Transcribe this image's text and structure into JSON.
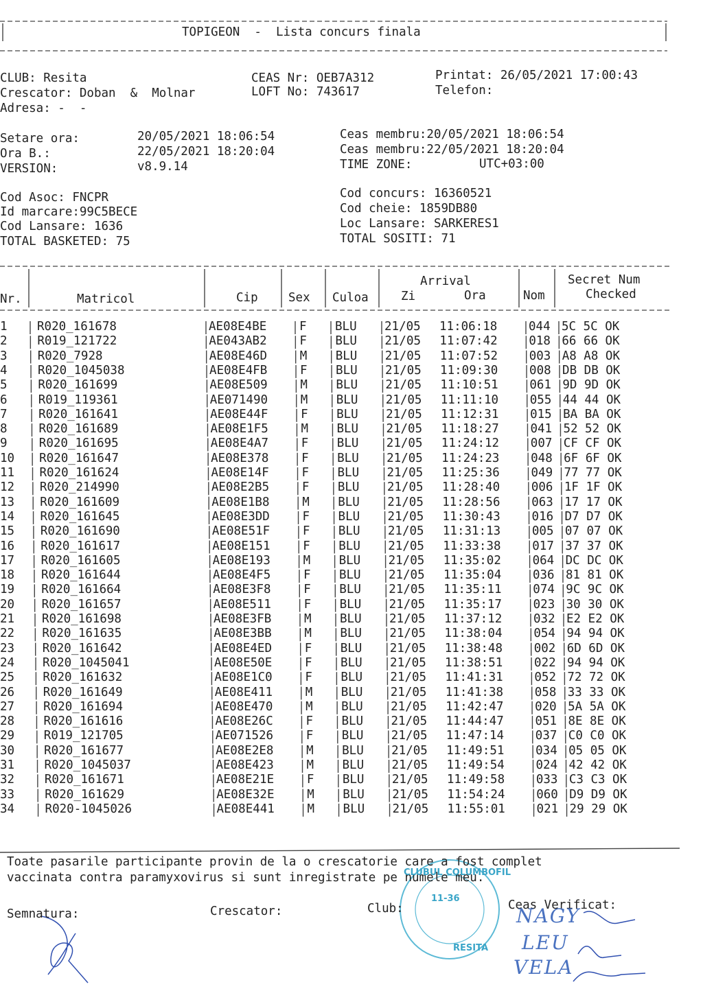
{
  "header": {
    "title": "TOPIGEON  -  Lista concurs finala"
  },
  "info": {
    "club": "CLUB: Resita",
    "ceas_nr": "CEAS Nr: OEB7A312",
    "printat": "Printat: 26/05/2021 17:00:43",
    "crescator": "Crescator: Doban  &  Molnar",
    "loft": "LOFT No: 743617",
    "telefon": "Telefon:",
    "adresa": "Adresa: -  -",
    "setare_label": "Setare ora:",
    "setare_value": "20/05/2021 18:06:54",
    "ceas_membru_1": "Ceas membru:20/05/2021 18:06:54",
    "ora_b_label": "Ora B.:",
    "ora_b_value": "22/05/2021 18:20:04",
    "ceas_membru_2": "Ceas membru:22/05/2021 18:20:04",
    "version_label": "VERSION:",
    "version_value": "v8.9.14",
    "time_zone_label": "TIME ZONE:",
    "time_zone_value": "UTC+03:00",
    "cod_asoc": "Cod Asoc: FNCPR",
    "id_marcare": "Id marcare:99C5BECE",
    "cod_lansare": "Cod Lansare: 1636",
    "total_basketed": "TOTAL BASKETED: 75",
    "cod_concurs": "Cod concurs: 16360521",
    "cod_cheie": "Cod cheie: 1859DB80",
    "loc_lansare": "Loc Lansare: SARKERES1",
    "total_sositi": "TOTAL SOSITI: 71"
  },
  "table": {
    "headers": {
      "nr": "Nr.",
      "matricol": "Matricol",
      "cip": "Cip",
      "sex": "Sex",
      "culoa": "Culoa",
      "arrival": "Arrival",
      "zi": "Zi",
      "ora": "Ora",
      "nom": "Nom",
      "secret": "Secret Num",
      "checked": "Checked"
    },
    "rows": [
      [
        "1",
        "R020_161678",
        "AE08E4BE",
        "F",
        "BLU",
        "21/05",
        "11:06:18",
        "044",
        "5C 5C OK"
      ],
      [
        "2",
        "R019_121722",
        "AE043AB2",
        "F",
        "BLU",
        "21/05",
        "11:07:42",
        "018",
        "66 66 OK"
      ],
      [
        "3",
        "R020_7928",
        "AE08E46D",
        "M",
        "BLU",
        "21/05",
        "11:07:52",
        "003",
        "A8 A8 OK"
      ],
      [
        "4",
        "R020_1045038",
        "AE08E4FB",
        "F",
        "BLU",
        "21/05",
        "11:09:30",
        "008",
        "DB DB OK"
      ],
      [
        "5",
        "R020_161699",
        "AE08E509",
        "M",
        "BLU",
        "21/05",
        "11:10:51",
        "061",
        "9D 9D OK"
      ],
      [
        "6",
        "R019_119361",
        "AE071490",
        "M",
        "BLU",
        "21/05",
        "11:11:10",
        "055",
        "44 44 OK"
      ],
      [
        "7",
        "R020_161641",
        "AE08E44F",
        "F",
        "BLU",
        "21/05",
        "11:12:31",
        "015",
        "BA BA OK"
      ],
      [
        "8",
        "R020_161689",
        "AE08E1F5",
        "M",
        "BLU",
        "21/05",
        "11:18:27",
        "041",
        "52 52 OK"
      ],
      [
        "9",
        "R020_161695",
        "AE08E4A7",
        "F",
        "BLU",
        "21/05",
        "11:24:12",
        "007",
        "CF CF OK"
      ],
      [
        "10",
        "R020_161647",
        "AE08E378",
        "F",
        "BLU",
        "21/05",
        "11:24:23",
        "048",
        "6F 6F OK"
      ],
      [
        "11",
        "R020_161624",
        "AE08E14F",
        "F",
        "BLU",
        "21/05",
        "11:25:36",
        "049",
        "77 77 OK"
      ],
      [
        "12",
        "R020_214990",
        "AE08E2B5",
        "F",
        "BLU",
        "21/05",
        "11:28:40",
        "006",
        "1F 1F OK"
      ],
      [
        "13",
        "R020_161609",
        "AE08E1B8",
        "M",
        "BLU",
        "21/05",
        "11:28:56",
        "063",
        "17 17 OK"
      ],
      [
        "14",
        "R020_161645",
        "AE08E3DD",
        "F",
        "BLU",
        "21/05",
        "11:30:43",
        "016",
        "D7 D7 OK"
      ],
      [
        "15",
        "R020_161690",
        "AE08E51F",
        "F",
        "BLU",
        "21/05",
        "11:31:13",
        "005",
        "07 07 OK"
      ],
      [
        "16",
        "R020_161617",
        "AE08E151",
        "F",
        "BLU",
        "21/05",
        "11:33:38",
        "017",
        "37 37 OK"
      ],
      [
        "17",
        "R020_161605",
        "AE08E193",
        "M",
        "BLU",
        "21/05",
        "11:35:02",
        "064",
        "DC DC OK"
      ],
      [
        "18",
        "R020_161644",
        "AE08E4F5",
        "F",
        "BLU",
        "21/05",
        "11:35:04",
        "036",
        "81 81 OK"
      ],
      [
        "19",
        "R020_161664",
        "AE08E3F8",
        "F",
        "BLU",
        "21/05",
        "11:35:11",
        "074",
        "9C 9C OK"
      ],
      [
        "20",
        "R020_161657",
        "AE08E511",
        "F",
        "BLU",
        "21/05",
        "11:35:17",
        "023",
        "30 30 OK"
      ],
      [
        "21",
        "R020_161698",
        "AE08E3FB",
        "M",
        "BLU",
        "21/05",
        "11:37:12",
        "032",
        "E2 E2 OK"
      ],
      [
        "22",
        "R020_161635",
        "AE08E3BB",
        "M",
        "BLU",
        "21/05",
        "11:38:04",
        "054",
        "94 94 OK"
      ],
      [
        "23",
        "R020_161642",
        "AE08E4ED",
        "F",
        "BLU",
        "21/05",
        "11:38:48",
        "002",
        "6D 6D OK"
      ],
      [
        "24",
        "R020_1045041",
        "AE08E50E",
        "F",
        "BLU",
        "21/05",
        "11:38:51",
        "022",
        "94 94 OK"
      ],
      [
        "25",
        "R020_161632",
        "AE08E1C0",
        "F",
        "BLU",
        "21/05",
        "11:41:31",
        "052",
        "72 72 OK"
      ],
      [
        "26",
        "R020_161649",
        "AE08E411",
        "M",
        "BLU",
        "21/05",
        "11:41:38",
        "058",
        "33 33 OK"
      ],
      [
        "27",
        "R020_161694",
        "AE08E470",
        "M",
        "BLU",
        "21/05",
        "11:42:47",
        "020",
        "5A 5A OK"
      ],
      [
        "28",
        "R020_161616",
        "AE08E26C",
        "F",
        "BLU",
        "21/05",
        "11:44:47",
        "051",
        "8E 8E OK"
      ],
      [
        "29",
        "R019_121705",
        "AE071526",
        "F",
        "BLU",
        "21/05",
        "11:47:14",
        "037",
        "C0 C0 OK"
      ],
      [
        "30",
        "R020_161677",
        "AE08E2E8",
        "M",
        "BLU",
        "21/05",
        "11:49:51",
        "034",
        "05 05 OK"
      ],
      [
        "31",
        "R020_1045037",
        "AE08E423",
        "M",
        "BLU",
        "21/05",
        "11:49:54",
        "024",
        "42 42 OK"
      ],
      [
        "32",
        "R020_161671",
        "AE08E21E",
        "F",
        "BLU",
        "21/05",
        "11:49:58",
        "033",
        "C3 C3 OK"
      ],
      [
        "33",
        "R020_161629",
        "AE08E32E",
        "M",
        "BLU",
        "21/05",
        "11:54:24",
        "060",
        "D9 D9 OK"
      ],
      [
        "34",
        "R020-1045026",
        "AE08E441",
        "M",
        "BLU",
        "21/05",
        "11:55:01",
        "021",
        "29 29 OK"
      ]
    ]
  },
  "footer": {
    "declaration_1": "Toate pasarile participante provin de la o crescatorie care a fost complet",
    "declaration_2": "vaccinata contra paramyxovirus si sunt inregistrate pe numele meu.",
    "semnatura": "Semnatura:",
    "crescator": "Crescator:",
    "club": "Club:",
    "ceas_verificat": "Ceas Verificat:",
    "handwritten": [
      "NAGY",
      "LEU",
      "VELA"
    ],
    "stamp": [
      "CLUBUL COLUMBOFIL",
      "RESITA",
      "11-36"
    ]
  }
}
